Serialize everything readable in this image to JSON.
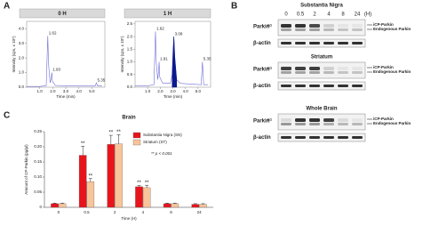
{
  "panel_labels": [
    "A",
    "B",
    "C"
  ],
  "chart_data": [
    {
      "type": "line",
      "title": "0 H",
      "x_label": "Time (min)",
      "y_label": "Intensity (cps, x 10⁵)",
      "x": [
        0,
        1.0,
        1.5,
        1.56,
        1.62,
        1.68,
        1.8,
        1.88,
        1.93,
        1.98,
        2.2,
        2.8,
        3.5,
        4.5,
        5.25,
        5.35,
        5.45,
        5.8
      ],
      "series": [
        {
          "color": "#6f6fd8",
          "values": [
            0.05,
            0.05,
            0.1,
            1.8,
            3.5,
            1.6,
            0.3,
            0.6,
            1.0,
            0.4,
            0.12,
            0.1,
            0.1,
            0.08,
            0.08,
            0.3,
            0.08,
            0.08
          ]
        }
      ],
      "peak_labels": [
        1.62,
        1.93,
        5.35
      ],
      "xlim": [
        0,
        6
      ],
      "ylim": [
        0,
        4.5
      ],
      "xticks": [
        {
          "value": 1,
          "label": "1.0"
        },
        {
          "value": 2,
          "label": "2.0"
        },
        {
          "value": 3,
          "label": "3.0"
        },
        {
          "value": 4,
          "label": "4.0"
        },
        {
          "value": 5,
          "label": "5.0"
        }
      ],
      "yticks": [
        {
          "value": 0,
          "label": "0.0"
        },
        {
          "value": 1,
          "label": "1.0"
        },
        {
          "value": 2,
          "label": "2.0"
        },
        {
          "value": 3,
          "label": "3.0"
        },
        {
          "value": 4,
          "label": "4.0"
        }
      ]
    },
    {
      "type": "line",
      "title": "1 H",
      "x_label": "Time (min)",
      "y_label": "Intensity (cps, x 10⁵)",
      "x": [
        0,
        1.0,
        1.5,
        1.56,
        1.62,
        1.68,
        1.8,
        1.86,
        1.91,
        1.96,
        2.2,
        2.8,
        2.95,
        3.02,
        3.08,
        3.15,
        3.3,
        3.6,
        4.5,
        5.25,
        5.35,
        5.45,
        5.8
      ],
      "series": [
        {
          "color": "#6f6fd8",
          "values": [
            0.05,
            0.05,
            0.1,
            1.2,
            2.2,
            1.0,
            0.3,
            0.6,
            1.0,
            0.4,
            0.15,
            0.15,
            0.5,
            1.4,
            2.0,
            1.2,
            0.3,
            0.15,
            0.12,
            0.1,
            1.0,
            0.1,
            0.1
          ]
        },
        {
          "color": "#0a1a8c",
          "fill": true,
          "values": [
            null,
            null,
            null,
            null,
            null,
            null,
            null,
            null,
            null,
            null,
            null,
            null,
            0.5,
            1.4,
            2.0,
            1.2,
            0.3,
            null,
            null,
            null,
            null,
            null,
            null
          ]
        }
      ],
      "peak_labels": [
        1.62,
        1.91,
        3.08,
        5.35
      ],
      "xlim": [
        0,
        6
      ],
      "ylim": [
        0,
        2.6
      ],
      "xticks": [
        {
          "value": 1,
          "label": "1.0"
        },
        {
          "value": 2,
          "label": "2.0"
        },
        {
          "value": 3,
          "label": "3.0"
        },
        {
          "value": 4,
          "label": "4.0"
        },
        {
          "value": 5,
          "label": "5.0"
        }
      ],
      "yticks": [
        {
          "value": 0,
          "label": "0.0"
        },
        {
          "value": 0.5,
          "label": "0.5"
        },
        {
          "value": 1,
          "label": "1.0"
        },
        {
          "value": 1.5,
          "label": "1.5"
        },
        {
          "value": 2,
          "label": "2.0"
        },
        {
          "value": 2.5,
          "label": "2.5"
        }
      ]
    },
    {
      "type": "bar",
      "title": "Brain",
      "x_label": "Time (H)",
      "y_label": "Amount of CP-Parkin (pg/μl)",
      "categories": [
        "0",
        "0.5",
        "2",
        "4",
        "8",
        "24"
      ],
      "series": [
        {
          "name": "Substantia Nigra (SN)",
          "color": "#e8141c",
          "values": [
            0.012,
            0.172,
            0.208,
            0.068,
            0.012,
            0.01
          ],
          "errors": [
            0.002,
            0.03,
            0.03,
            0.004,
            0.002,
            0.002
          ],
          "significance": [
            null,
            "**",
            "**",
            "**",
            null,
            null
          ]
        },
        {
          "name": "Striatum (ST)",
          "color": "#f8c49a",
          "values": [
            0.012,
            0.085,
            0.21,
            0.065,
            0.012,
            0.01
          ],
          "errors": [
            0.002,
            0.01,
            0.03,
            0.008,
            0.002,
            0.002
          ],
          "significance": [
            null,
            "**",
            "**",
            "**",
            null,
            null
          ]
        }
      ],
      "note": "** p < 0.001",
      "ylim": [
        0,
        0.25
      ],
      "yticks": [
        0,
        0.05,
        {
          "value": 0.1,
          "label": "0.10"
        },
        0.15,
        {
          "value": 0.2,
          "label": "0.20"
        },
        0.25
      ]
    }
  ],
  "blots": {
    "lanes": [
      "0",
      "0.5",
      "2",
      "4",
      "8",
      "24"
    ],
    "unit": "(H)",
    "panels": [
      {
        "title": "Substantia Nigra",
        "target": "Parkin",
        "marker": "50",
        "upper": "iCP-Parkin",
        "lower": "Endogenous Parkin",
        "control": "β-actin"
      },
      {
        "title": "Striatum",
        "target": "Parkin",
        "marker": "50",
        "upper": "iCP-Parkin",
        "lower": "Endogenous Parkin",
        "control": "β-actin"
      },
      {
        "title": "Whole Brain",
        "target": "Parkin",
        "marker": "50",
        "upper": "iCP-Parkin",
        "lower": "Endogenous Parkin",
        "control": "β-actin"
      }
    ]
  }
}
